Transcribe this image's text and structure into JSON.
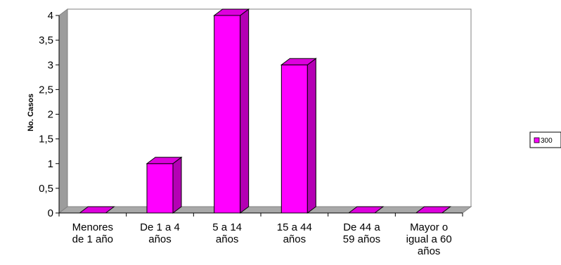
{
  "chart_data": {
    "type": "bar",
    "title": "",
    "xlabel": "",
    "ylabel": "No. Casos",
    "categories": [
      [
        "Menores",
        "de 1 año"
      ],
      [
        "De 1 a 4",
        "años"
      ],
      [
        "5 a 14",
        "años"
      ],
      [
        "15 a 44",
        "años"
      ],
      [
        "De 44 a",
        "59 años"
      ],
      [
        "Mayor o",
        "igual a 60",
        "años"
      ]
    ],
    "series": [
      {
        "name": "300",
        "values": [
          0,
          1,
          4,
          3,
          0,
          0
        ],
        "color": "#ff00ff"
      }
    ],
    "yticks": [
      "0",
      "0,5",
      "1",
      "1,5",
      "2",
      "2,5",
      "3",
      "3,5",
      "4"
    ],
    "ylim": [
      0,
      4
    ],
    "grid": false,
    "legend": "right",
    "style": "3d-bar"
  }
}
